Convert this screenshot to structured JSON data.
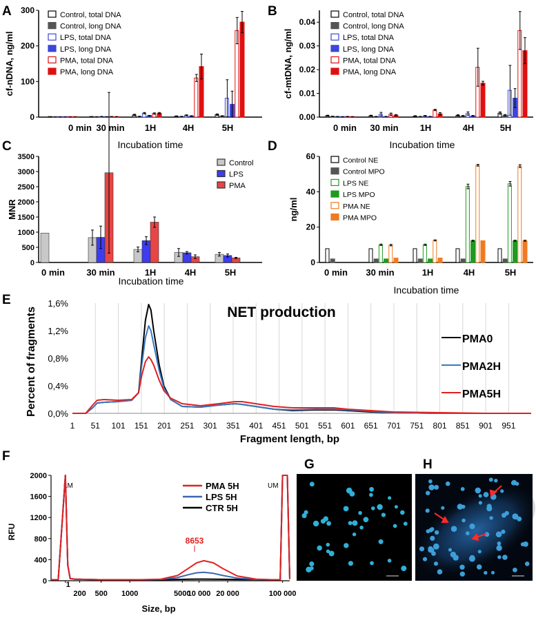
{
  "chart_data": [
    {
      "panel": "A",
      "type": "bar",
      "categories": [
        "0 min",
        "30 min",
        "1H",
        "4H",
        "5H"
      ],
      "xlabel": "Incubation time",
      "ylabel": "cf-nDNA, ng/ml",
      "ylim": [
        0,
        300
      ],
      "yticks": [
        0,
        100,
        200,
        300
      ],
      "legend": "top-left",
      "series": [
        {
          "name": "Control, total DNA",
          "color": "#000000",
          "style": "open",
          "values": [
            0.3,
            1.0,
            6.0,
            2.5,
            7.0
          ],
          "err": [
            0.2,
            0.5,
            2.0,
            1.0,
            2.0
          ]
        },
        {
          "name": "Control, long DNA",
          "color": "#555555",
          "style": "filled",
          "values": [
            0.2,
            0.5,
            1.5,
            1.5,
            3.0
          ],
          "err": [
            0.1,
            0.3,
            1.0,
            0.8,
            1.0
          ]
        },
        {
          "name": "LPS, total DNA",
          "color": "#3a47d8",
          "style": "open",
          "values": [
            0.3,
            1.5,
            11.0,
            5.0,
            53.0
          ],
          "err": [
            0.2,
            0.5,
            2.0,
            1.5,
            52.0
          ]
        },
        {
          "name": "LPS, long DNA",
          "color": "#3a47d8",
          "style": "filled",
          "values": [
            0.2,
            0.8,
            4.0,
            3.0,
            36.0
          ],
          "err": [
            0.1,
            0.3,
            1.0,
            1.0,
            37.0
          ]
        },
        {
          "name": "PMA, total DNA",
          "color": "#e01010",
          "style": "open",
          "values": [
            0.3,
            1.2,
            10.0,
            110.0,
            243.0
          ],
          "err": [
            0.2,
            0.5,
            2.0,
            10.0,
            37.0
          ]
        },
        {
          "name": "PMA, long DNA",
          "color": "#e01010",
          "style": "filled",
          "values": [
            0.2,
            1.0,
            11.0,
            142.0,
            267.0
          ],
          "err": [
            0.1,
            0.4,
            2.0,
            35.0,
            30.0
          ]
        }
      ]
    },
    {
      "panel": "B",
      "type": "bar",
      "categories": [
        "0 min",
        "30 min",
        "1H",
        "4H",
        "5H"
      ],
      "xlabel": "Incubation time",
      "ylabel": "cf-mtDNA, ng/ml",
      "ylim": [
        0,
        0.045
      ],
      "yticks": [
        0.0,
        0.01,
        0.02,
        0.03,
        0.04
      ],
      "legend": "top-left",
      "series": [
        {
          "name": "Control, total DNA",
          "color": "#000000",
          "style": "open",
          "values": [
            0.0006,
            0.0006,
            0.0004,
            0.0007,
            0.0017
          ],
          "err": [
            0.0002,
            0.0002,
            0.0002,
            0.0003,
            0.0005
          ]
        },
        {
          "name": "Control, long DNA",
          "color": "#555555",
          "style": "filled",
          "values": [
            0.0003,
            0.0002,
            0.0002,
            0.0005,
            0.0008
          ],
          "err": [
            0.0001,
            0.0001,
            0.0001,
            0.0002,
            0.0003
          ]
        },
        {
          "name": "LPS, total DNA",
          "color": "#3a47d8",
          "style": "open",
          "values": [
            0.0002,
            0.0012,
            0.0005,
            0.0015,
            0.0113
          ],
          "err": [
            0.0001,
            0.0008,
            0.0002,
            0.0007,
            0.0105
          ]
        },
        {
          "name": "LPS, long DNA",
          "color": "#3a47d8",
          "style": "filled",
          "values": [
            0.0001,
            0.0002,
            0.0002,
            0.0005,
            0.008
          ],
          "err": [
            0.0001,
            0.0001,
            0.0001,
            0.0002,
            0.004
          ]
        },
        {
          "name": "PMA, total DNA",
          "color": "#e01010",
          "style": "open",
          "values": [
            0.0002,
            0.0012,
            0.003,
            0.021,
            0.0365
          ],
          "err": [
            0.0001,
            0.0005,
            0.0003,
            0.008,
            0.008
          ]
        },
        {
          "name": "PMA, long DNA",
          "color": "#e01010",
          "style": "filled",
          "values": [
            0.0001,
            0.0008,
            0.0014,
            0.0143,
            0.028
          ],
          "err": [
            0.0001,
            0.0003,
            0.0005,
            0.0008,
            0.0055
          ]
        }
      ]
    },
    {
      "panel": "C",
      "type": "bar",
      "categories": [
        "0 min",
        "30 min",
        "1H",
        "4H",
        "5H"
      ],
      "xlabel": "Incubation time",
      "ylabel": "MNR",
      "ylim": [
        0,
        3500
      ],
      "yticks": [
        0,
        500,
        1000,
        1500,
        2000,
        2500,
        3000,
        3500
      ],
      "legend": "top-right",
      "series": [
        {
          "name": "Control",
          "color": "#c8c8c8",
          "values": [
            970,
            820,
            430,
            330,
            270
          ],
          "err": [
            0,
            250,
            80,
            130,
            60
          ]
        },
        {
          "name": "LPS",
          "color": "#3c3cf0",
          "values": [
            null,
            830,
            720,
            320,
            230
          ],
          "err": [
            0,
            370,
            130,
            40,
            50
          ]
        },
        {
          "name": "PMA",
          "color": "#e84545",
          "values": [
            null,
            2960,
            1330,
            190,
            150
          ],
          "err": [
            0,
            2650,
            170,
            60,
            20
          ]
        }
      ]
    },
    {
      "panel": "D",
      "type": "bar",
      "categories": [
        "0 min",
        "30 min",
        "1H",
        "4H",
        "5H"
      ],
      "xlabel": "Incubation time",
      "ylabel": "ng/ml",
      "ylim": [
        0,
        60
      ],
      "yticks": [
        0,
        20,
        40,
        60
      ],
      "legend": "top-left",
      "series": [
        {
          "name": "Control NE",
          "color": "#000000",
          "style": "open",
          "values": [
            7.8,
            7.8,
            7.8,
            7.8,
            7.8
          ],
          "err": [
            0,
            0,
            0,
            0,
            0
          ]
        },
        {
          "name": "Control MPO",
          "color": "#555555",
          "style": "filled",
          "values": [
            2.0,
            2.0,
            2.0,
            2.0,
            2.0
          ],
          "err": [
            0,
            0,
            0,
            0,
            0
          ]
        },
        {
          "name": "LPS NE",
          "color": "#1f9a1f",
          "style": "open",
          "values": [
            null,
            10.0,
            10.0,
            43.0,
            44.5
          ],
          "err": [
            0,
            0.4,
            0.4,
            1.3,
            1.3
          ]
        },
        {
          "name": "LPS MPO",
          "color": "#1f9a1f",
          "style": "filled",
          "values": [
            null,
            2.0,
            2.0,
            12.3,
            12.3
          ],
          "err": [
            0,
            0,
            0,
            0.3,
            0.3
          ]
        },
        {
          "name": "PMA NE",
          "color": "#f07a20",
          "style": "open",
          "values": [
            null,
            9.8,
            12.5,
            55.0,
            54.5
          ],
          "err": [
            0,
            0.4,
            0.3,
            0.5,
            0.8
          ]
        },
        {
          "name": "PMA MPO",
          "color": "#f07a20",
          "style": "filled",
          "values": [
            null,
            2.5,
            2.5,
            12.3,
            12.3
          ],
          "err": [
            0,
            0,
            0,
            0,
            0.3
          ]
        }
      ]
    },
    {
      "panel": "E",
      "type": "line",
      "title": "NET production",
      "xlabel": "Fragment length, bp",
      "ylabel": "Percent of fragments",
      "xlim": [
        1,
        1000
      ],
      "ylim": [
        0,
        1.6
      ],
      "xticks": [
        1,
        51,
        101,
        151,
        201,
        251,
        301,
        351,
        401,
        451,
        501,
        551,
        601,
        651,
        701,
        751,
        801,
        851,
        901,
        951
      ],
      "yticks": [
        "0,0%",
        "0,4%",
        "0,8%",
        "1,2%",
        "1,6%"
      ],
      "grid": "vertical",
      "legend": "right",
      "series": [
        {
          "name": "PMA0",
          "color": "#000000",
          "x": [
            1,
            30,
            45,
            55,
            70,
            100,
            130,
            145,
            152,
            160,
            167,
            172,
            178,
            190,
            200,
            215,
            240,
            280,
            320,
            355,
            370,
            400,
            440,
            480,
            530,
            570,
            600,
            650,
            700,
            800,
            900,
            1000
          ],
          "y": [
            0.0,
            0.0,
            0.08,
            0.15,
            0.16,
            0.17,
            0.19,
            0.3,
            0.8,
            1.35,
            1.58,
            1.5,
            1.2,
            0.7,
            0.4,
            0.2,
            0.1,
            0.09,
            0.12,
            0.14,
            0.13,
            0.1,
            0.06,
            0.04,
            0.05,
            0.05,
            0.04,
            0.02,
            0.01,
            0.0,
            0.0,
            0.0
          ]
        },
        {
          "name": "PMA2H",
          "color": "#3a78c2",
          "x": [
            1,
            30,
            45,
            55,
            70,
            100,
            130,
            145,
            152,
            160,
            167,
            172,
            178,
            190,
            200,
            215,
            240,
            280,
            320,
            355,
            370,
            400,
            440,
            480,
            530,
            570,
            600,
            650,
            700,
            800,
            900,
            1000
          ],
          "y": [
            0.0,
            0.0,
            0.08,
            0.15,
            0.16,
            0.17,
            0.19,
            0.3,
            0.7,
            1.1,
            1.27,
            1.2,
            1.0,
            0.62,
            0.37,
            0.2,
            0.1,
            0.09,
            0.12,
            0.14,
            0.13,
            0.1,
            0.06,
            0.05,
            0.06,
            0.06,
            0.05,
            0.03,
            0.01,
            0.0,
            0.0,
            0.0
          ]
        },
        {
          "name": "PMA5H",
          "color": "#e02020",
          "x": [
            1,
            30,
            45,
            55,
            70,
            100,
            130,
            145,
            152,
            160,
            167,
            172,
            178,
            190,
            200,
            215,
            240,
            280,
            320,
            355,
            370,
            400,
            440,
            480,
            530,
            570,
            600,
            650,
            700,
            800,
            900,
            1000
          ],
          "y": [
            0.0,
            0.0,
            0.12,
            0.19,
            0.2,
            0.19,
            0.2,
            0.3,
            0.55,
            0.75,
            0.82,
            0.78,
            0.7,
            0.48,
            0.33,
            0.22,
            0.14,
            0.11,
            0.14,
            0.17,
            0.17,
            0.14,
            0.1,
            0.08,
            0.08,
            0.08,
            0.06,
            0.04,
            0.02,
            0.01,
            0.0,
            0.0
          ]
        }
      ]
    },
    {
      "panel": "F",
      "type": "line",
      "xlabel": "Size, bp",
      "ylabel": "RFU",
      "ylim": [
        0,
        2000
      ],
      "yticks": [
        0,
        400,
        800,
        1200,
        1600,
        2000
      ],
      "xtick_labels": [
        "1",
        "200",
        "500",
        "1000",
        "5000",
        "10 000",
        "20 000",
        "100 000"
      ],
      "markers": [
        "LM",
        "UM"
      ],
      "peak_label": "8653",
      "legend": "top-center",
      "series": [
        {
          "name": "PMA 5H",
          "color": "#e02020",
          "x": [
            0,
            0.03,
            0.06,
            0.07,
            0.08,
            0.1,
            0.2,
            0.38,
            0.46,
            0.53,
            0.58,
            0.61,
            0.64,
            0.68,
            0.72,
            0.78,
            0.86,
            0.92,
            0.96,
            0.97,
            0.99,
            1.0
          ],
          "y": [
            20,
            20,
            2000,
            300,
            40,
            30,
            20,
            20,
            30,
            100,
            250,
            340,
            380,
            340,
            230,
            90,
            30,
            20,
            20,
            2000,
            2000,
            30
          ]
        },
        {
          "name": "LPS 5H",
          "color": "#3a64b0",
          "x": [
            0,
            0.03,
            0.06,
            0.07,
            0.08,
            0.1,
            0.2,
            0.38,
            0.46,
            0.53,
            0.58,
            0.61,
            0.64,
            0.68,
            0.72,
            0.78,
            0.86,
            0.92,
            0.96,
            0.97,
            0.99,
            1.0
          ],
          "y": [
            20,
            20,
            2000,
            300,
            40,
            30,
            20,
            20,
            25,
            60,
            120,
            150,
            160,
            140,
            100,
            50,
            25,
            20,
            20,
            2000,
            2000,
            30
          ]
        },
        {
          "name": "CTR 5H",
          "color": "#000000",
          "x": [
            0,
            0.03,
            0.06,
            0.07,
            0.08,
            0.1,
            0.2,
            0.38,
            0.46,
            0.53,
            0.58,
            0.61,
            0.64,
            0.68,
            0.72,
            0.78,
            0.86,
            0.92,
            0.96,
            0.97,
            0.99,
            1.0
          ],
          "y": [
            20,
            20,
            2000,
            300,
            40,
            30,
            20,
            20,
            20,
            25,
            30,
            32,
            32,
            30,
            28,
            25,
            22,
            20,
            20,
            2000,
            2000,
            30
          ]
        }
      ]
    }
  ],
  "images": {
    "G": {
      "label": "G",
      "description": "scattered blue stained nuclei on black"
    },
    "H": {
      "label": "H",
      "description": "blue stained nuclei with diffuse NET structures, red arrows"
    }
  },
  "panel_labels": [
    "A",
    "B",
    "C",
    "D",
    "E",
    "F",
    "G",
    "H"
  ]
}
